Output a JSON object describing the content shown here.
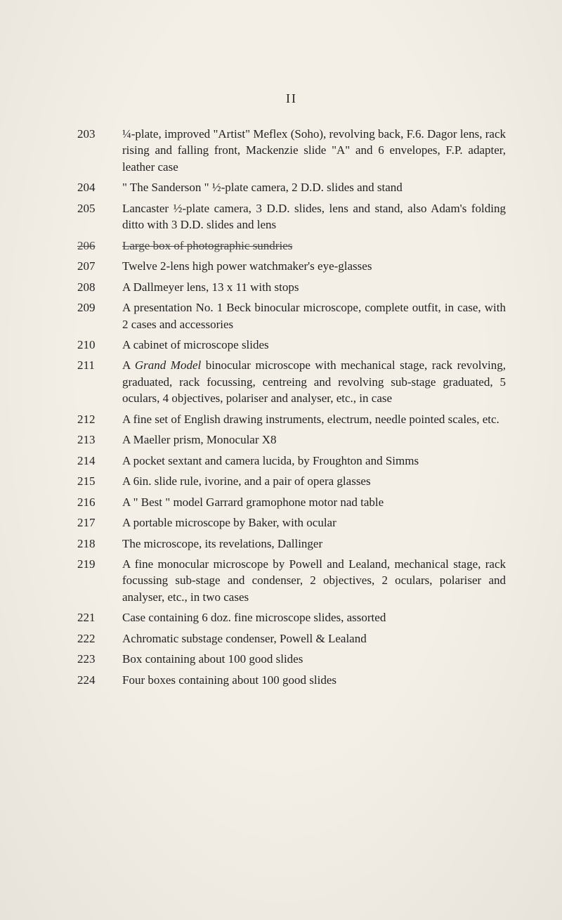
{
  "page_number": "II",
  "entries": [
    {
      "lot": "203",
      "text": "¼-plate, improved \"Artist\" Meflex (Soho), revolving back, F.6. Dagor lens, rack rising and falling front, Mackenzie slide \"A\" and 6 envelopes, F.P. adapter, leather case",
      "struck": false
    },
    {
      "lot": "204",
      "text": "\" The Sanderson \" ½-plate camera, 2 D.D. slides and stand",
      "struck": false
    },
    {
      "lot": "205",
      "text": "Lancaster ½-plate camera, 3 D.D. slides, lens and stand, also Adam's folding ditto with 3 D.D. slides and lens",
      "struck": false
    },
    {
      "lot": "206",
      "text": "Large box of photographic sundries",
      "struck": true
    },
    {
      "lot": "207",
      "text": "Twelve 2-lens high power watchmaker's eye-glasses",
      "struck": false
    },
    {
      "lot": "208",
      "text": "A Dallmeyer lens, 13 x 11 with stops",
      "struck": false
    },
    {
      "lot": "209",
      "text": "A presentation No. 1 Beck binocular microscope, complete outfit, in case, with 2 cases and accessories",
      "struck": false
    },
    {
      "lot": "210",
      "text": "A cabinet of microscope slides",
      "struck": false
    },
    {
      "lot": "211",
      "text_parts": [
        {
          "t": "A ",
          "i": false
        },
        {
          "t": "Grand Model",
          "i": true
        },
        {
          "t": " binocular microscope with mechanical stage, rack revolving, graduated, rack focussing, centreing and revolving sub-stage graduated, 5 oculars, 4 objectives, polariser and analyser, etc., in case",
          "i": false
        }
      ],
      "struck": false
    },
    {
      "lot": "212",
      "text": "A fine set of English drawing instruments, electrum, needle pointed scales, etc.",
      "struck": false
    },
    {
      "lot": "213",
      "text": "A Maeller prism, Monocular X8",
      "struck": false
    },
    {
      "lot": "214",
      "text": "A pocket sextant and camera lucida, by Froughton and Simms",
      "struck": false
    },
    {
      "lot": "215",
      "text": "A 6in. slide rule, ivorine, and a pair of opera glasses",
      "struck": false
    },
    {
      "lot": "216",
      "text": "A \" Best \" model Garrard gramophone motor nad table",
      "struck": false
    },
    {
      "lot": "217",
      "text": "A portable microscope by Baker, with ocular",
      "struck": false
    },
    {
      "lot": "218",
      "text": "The microscope, its revelations, Dallinger",
      "struck": false
    },
    {
      "lot": "219",
      "text": "A fine monocular microscope by Powell and Lealand, mechanical stage, rack focussing sub-stage and condenser, 2 objectives, 2 oculars, polariser and analyser, etc., in two cases",
      "struck": false
    },
    {
      "lot": "221",
      "text": "Case containing 6 doz. fine microscope slides, assorted",
      "struck": false
    },
    {
      "lot": "222",
      "text": "Achromatic substage condenser, Powell & Lealand",
      "struck": false
    },
    {
      "lot": "223",
      "text": "Box containing about 100 good slides",
      "struck": false
    },
    {
      "lot": "224",
      "text": "Four boxes containing about 100 good slides",
      "struck": false
    }
  ]
}
